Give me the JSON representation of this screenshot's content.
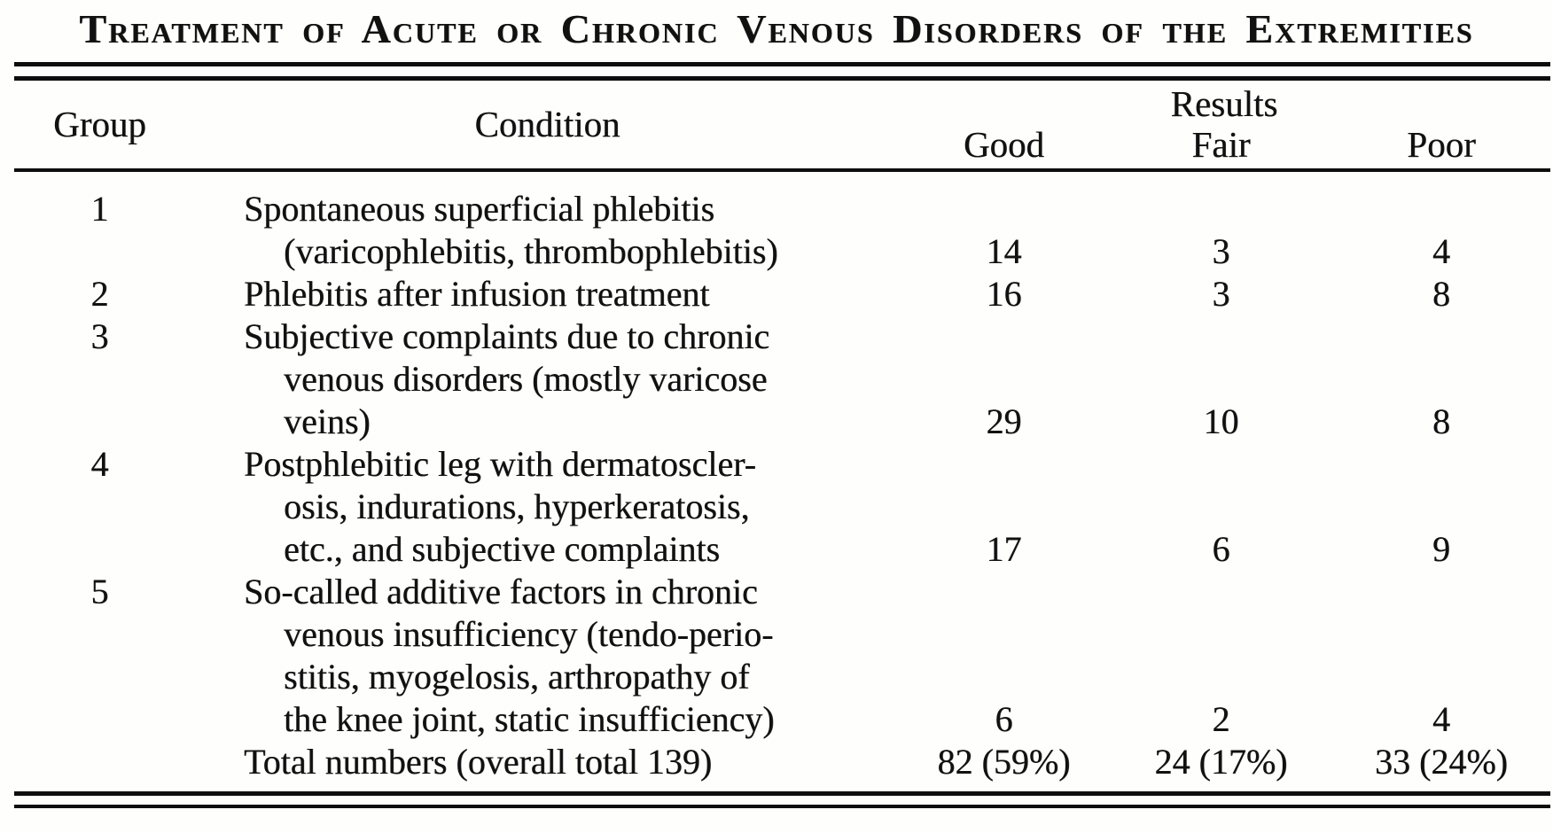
{
  "document": {
    "title": "Treatment of Acute or Chronic Venous Disorders of the Extremities",
    "ink_color": "#111111",
    "paper_color": "#fefefd"
  },
  "table": {
    "headers": {
      "group": "Group",
      "condition": "Condition",
      "results_group": "Results",
      "good": "Good",
      "fair": "Fair",
      "poor": "Poor"
    },
    "rows": [
      {
        "group": "1",
        "condition": "Spontaneous superficial phlebitis\n(varicophlebitis, thrombophlebitis)",
        "good": "14",
        "fair": "3",
        "poor": "4"
      },
      {
        "group": "2",
        "condition": "Phlebitis after infusion treatment",
        "good": "16",
        "fair": "3",
        "poor": "8"
      },
      {
        "group": "3",
        "condition": "Subjective complaints due to chronic\nvenous disorders (mostly varicose\nveins)",
        "good": "29",
        "fair": "10",
        "poor": "8"
      },
      {
        "group": "4",
        "condition": "Postphlebitic leg with dermatoscler-\nosis, indurations, hyperkeratosis,\netc., and subjective complaints",
        "good": "17",
        "fair": "6",
        "poor": "9"
      },
      {
        "group": "5",
        "condition": "So-called additive factors in chronic\nvenous insufficiency (tendo-perio-\nstitis, myogelosis, arthropathy of\nthe knee joint, static insufficiency)",
        "good": "6",
        "fair": "2",
        "poor": "4"
      }
    ],
    "total": {
      "label": "Total numbers (overall total 139)",
      "good": "82 (59%)",
      "fair": "24 (17%)",
      "poor": "33 (24%)"
    },
    "overall_total": "139"
  }
}
